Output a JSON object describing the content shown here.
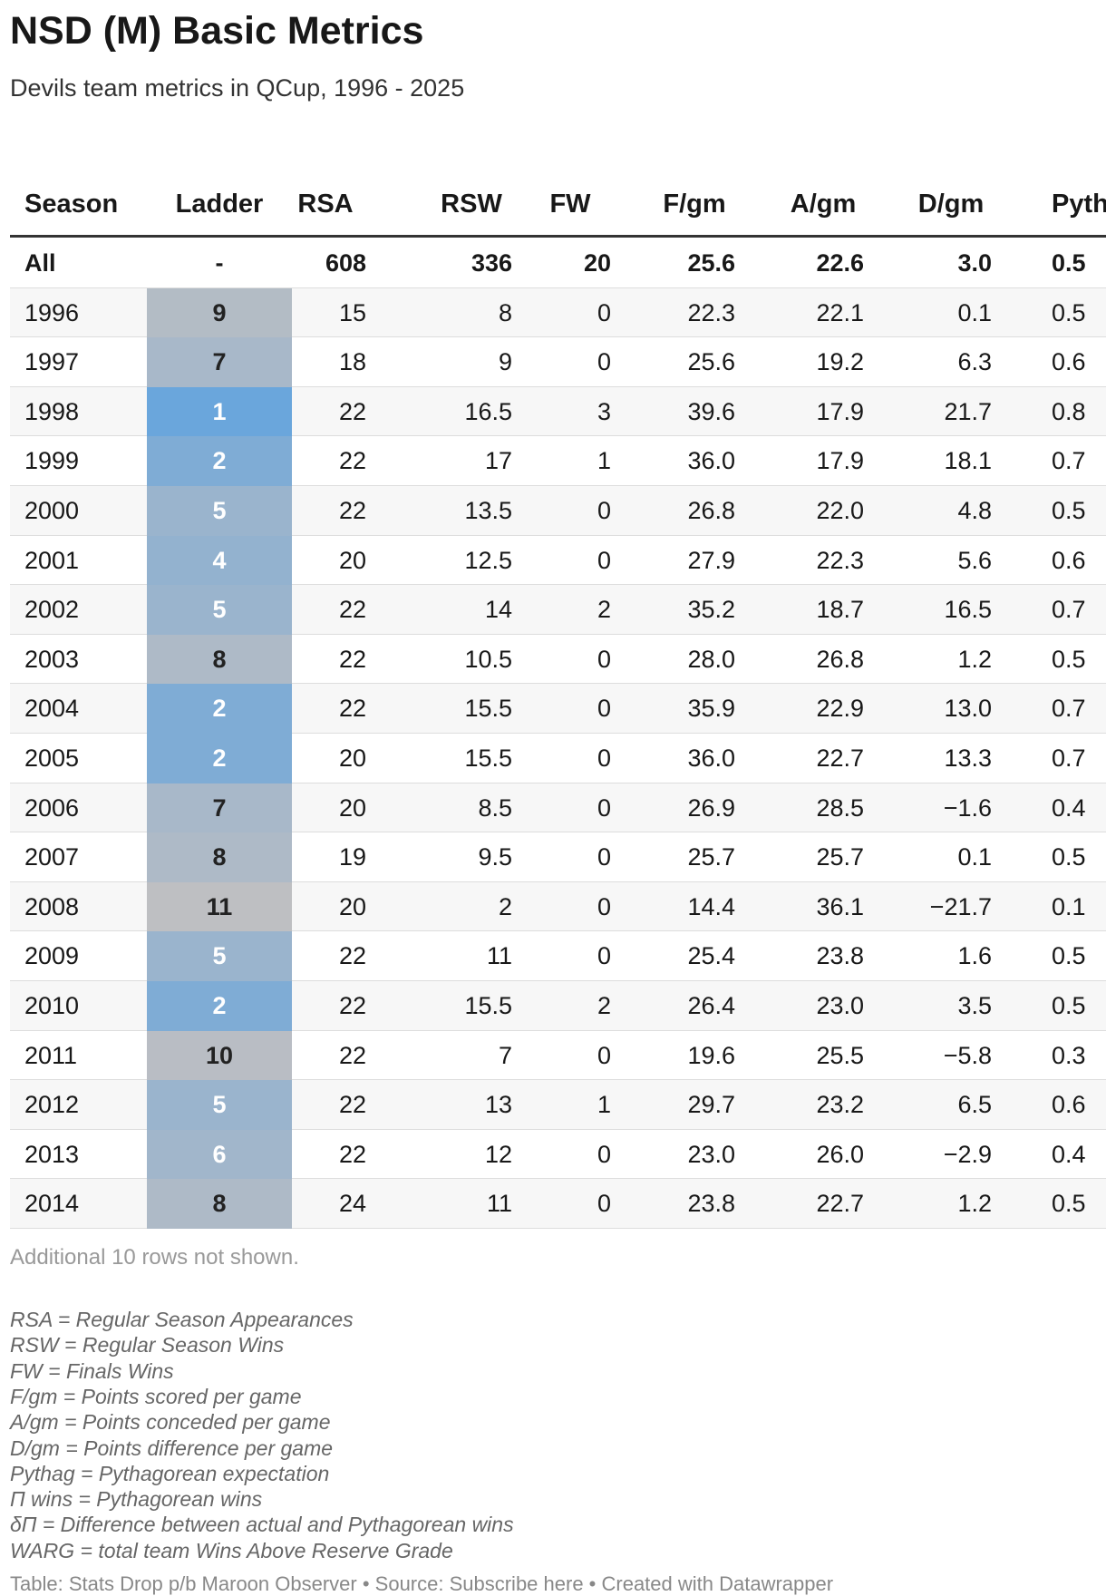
{
  "header": {
    "title": "NSD (M) Basic Metrics",
    "subtitle": "Devils team metrics in QCup, 1996 - 2025"
  },
  "table": {
    "columns": [
      "Season",
      "Ladder",
      "RSA",
      "RSW",
      "FW",
      "F/gm",
      "A/gm",
      "D/gm",
      "Pyth"
    ],
    "rows": [
      [
        "All",
        "-",
        "608",
        "336",
        "20",
        "25.6",
        "22.6",
        "3.0",
        "0.5"
      ],
      [
        "1996",
        "9",
        "15",
        "8",
        "0",
        "22.3",
        "22.1",
        "0.1",
        "0.5"
      ],
      [
        "1997",
        "7",
        "18",
        "9",
        "0",
        "25.6",
        "19.2",
        "6.3",
        "0.6"
      ],
      [
        "1998",
        "1",
        "22",
        "16.5",
        "3",
        "39.6",
        "17.9",
        "21.7",
        "0.8"
      ],
      [
        "1999",
        "2",
        "22",
        "17",
        "1",
        "36.0",
        "17.9",
        "18.1",
        "0.7"
      ],
      [
        "2000",
        "5",
        "22",
        "13.5",
        "0",
        "26.8",
        "22.0",
        "4.8",
        "0.5"
      ],
      [
        "2001",
        "4",
        "20",
        "12.5",
        "0",
        "27.9",
        "22.3",
        "5.6",
        "0.6"
      ],
      [
        "2002",
        "5",
        "22",
        "14",
        "2",
        "35.2",
        "18.7",
        "16.5",
        "0.7"
      ],
      [
        "2003",
        "8",
        "22",
        "10.5",
        "0",
        "28.0",
        "26.8",
        "1.2",
        "0.5"
      ],
      [
        "2004",
        "2",
        "22",
        "15.5",
        "0",
        "35.9",
        "22.9",
        "13.0",
        "0.7"
      ],
      [
        "2005",
        "2",
        "20",
        "15.5",
        "0",
        "36.0",
        "22.7",
        "13.3",
        "0.7"
      ],
      [
        "2006",
        "7",
        "20",
        "8.5",
        "0",
        "26.9",
        "28.5",
        "−1.6",
        "0.4"
      ],
      [
        "2007",
        "8",
        "19",
        "9.5",
        "0",
        "25.7",
        "25.7",
        "0.1",
        "0.5"
      ],
      [
        "2008",
        "11",
        "20",
        "2",
        "0",
        "14.4",
        "36.1",
        "−21.7",
        "0.1"
      ],
      [
        "2009",
        "5",
        "22",
        "11",
        "0",
        "25.4",
        "23.8",
        "1.6",
        "0.5"
      ],
      [
        "2010",
        "2",
        "22",
        "15.5",
        "2",
        "26.4",
        "23.0",
        "3.5",
        "0.5"
      ],
      [
        "2011",
        "10",
        "22",
        "7",
        "0",
        "19.6",
        "25.5",
        "−5.8",
        "0.3"
      ],
      [
        "2012",
        "5",
        "22",
        "13",
        "1",
        "29.7",
        "23.2",
        "6.5",
        "0.6"
      ],
      [
        "2013",
        "6",
        "22",
        "12",
        "0",
        "23.0",
        "26.0",
        "−2.9",
        "0.4"
      ],
      [
        "2014",
        "8",
        "24",
        "11",
        "0",
        "23.8",
        "22.7",
        "1.2",
        "0.5"
      ]
    ],
    "more_rows_note": "Additional 10 rows not shown."
  },
  "notes": [
    "RSA = Regular Season Appearances",
    "RSW = Regular Season Wins",
    "FW = Finals Wins",
    "F/gm = Points scored per game",
    "A/gm = Points conceded per game",
    "D/gm = Points difference per game",
    "Pythag = Pythagorean expectation",
    "Π wins = Pythagorean wins",
    "δΠ = Difference between actual and Pythagorean wins",
    "WARG = total team Wins Above Reserve Grade"
  ],
  "footer": "Table: Stats Drop p/b Maroon Observer • Source: Subscribe here • Created with Datawrapper"
}
